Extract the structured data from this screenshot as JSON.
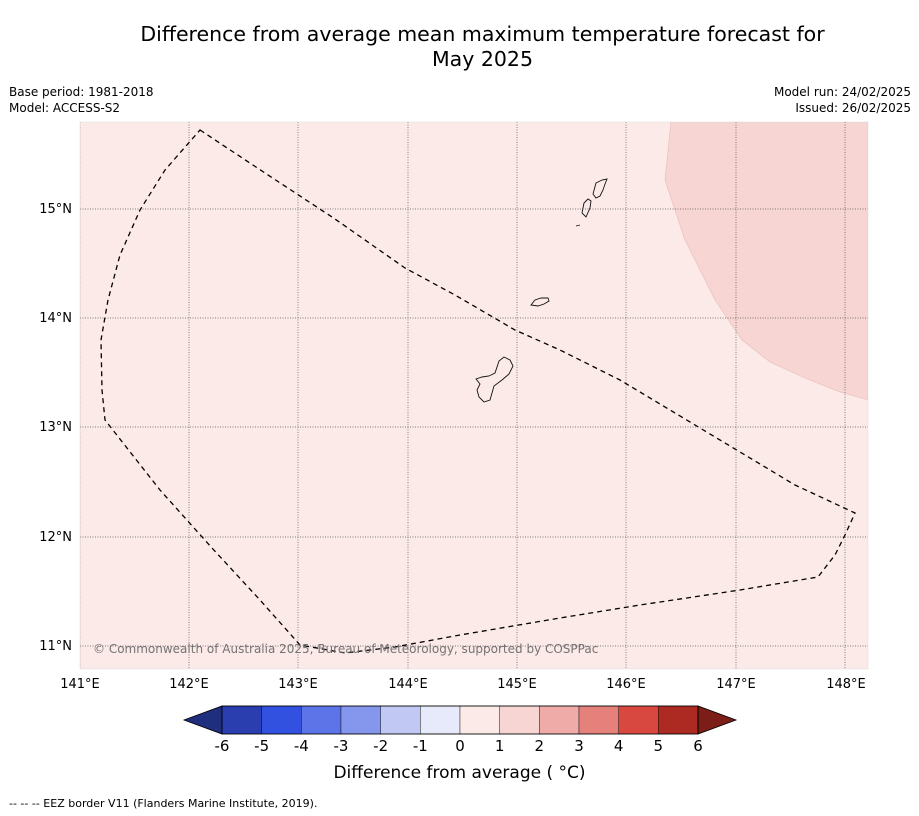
{
  "title_line1": "Difference from average mean maximum temperature forecast for",
  "title_line2": "May 2025",
  "meta": {
    "base_period": "Base period: 1981-2018",
    "model": "Model: ACCESS-S2",
    "model_run": "Model run: 24/02/2025",
    "issued": "Issued: 26/02/2025"
  },
  "lat_labels": [
    "15°N",
    "14°N",
    "13°N",
    "12°N",
    "11°N"
  ],
  "lon_labels": [
    "141°E",
    "142°E",
    "143°E",
    "144°E",
    "145°E",
    "146°E",
    "147°E",
    "148°E"
  ],
  "copyright": "© Commonwealth of Australia 2025, Bureau of Meteorology, supported by COSPPac",
  "map_fill": {
    "background_class": "0 to 1",
    "background_color": "#fbeae8",
    "warm_patch_class": "1 to 2",
    "warm_patch_color": "#f6d5d2"
  },
  "colorbar": {
    "title": "Difference from average ( °C)",
    "ticks": [
      "-6",
      "-5",
      "-4",
      "-3",
      "-2",
      "-1",
      "0",
      "1",
      "2",
      "3",
      "4",
      "5",
      "6"
    ],
    "colors": [
      "#2a3eb0",
      "#3251e0",
      "#5d74e8",
      "#8497ec",
      "#c0c8f3",
      "#e6eafb",
      "#fbeae8",
      "#f6d5d2",
      "#eeaba7",
      "#e5807a",
      "#d94840",
      "#ad2a22"
    ],
    "low_extend_color": "#1f2f7d",
    "high_extend_color": "#7d1d17"
  },
  "footnote": "--  --  -- EEZ border V11 (Flanders Marine Institute, 2019)."
}
